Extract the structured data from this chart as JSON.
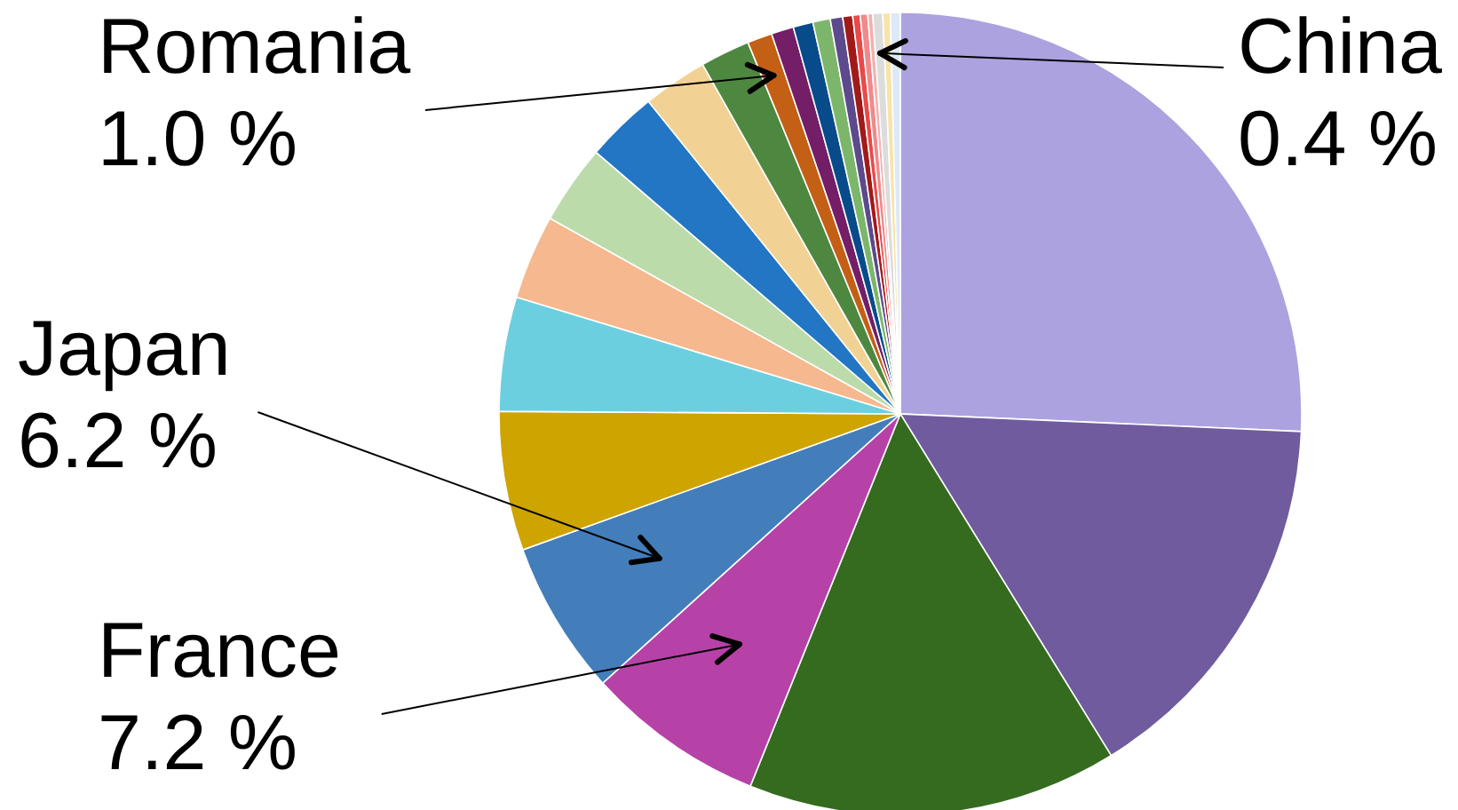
{
  "chart_data": {
    "type": "pie",
    "categories": [
      null,
      null,
      null,
      "France",
      "Japan",
      null,
      null,
      null,
      null,
      null,
      null,
      null,
      "Romania",
      null,
      null,
      null,
      null,
      null,
      null,
      null,
      null,
      "China",
      null,
      null
    ],
    "values": [
      25.7,
      15.5,
      14.9,
      7.2,
      6.2,
      5.6,
      4.6,
      3.4,
      3.2,
      2.9,
      2.6,
      2.0,
      1.0,
      0.9,
      0.8,
      0.7,
      0.5,
      0.4,
      0.3,
      0.3,
      0.2,
      0.4,
      0.3,
      0.4
    ],
    "value_labels": [
      null,
      null,
      null,
      "7.2 %",
      "6.2 %",
      null,
      null,
      null,
      null,
      null,
      null,
      null,
      "1.0 %",
      null,
      null,
      null,
      null,
      null,
      null,
      null,
      null,
      "0.4 %",
      null,
      null
    ],
    "colors": [
      "#ada2e0",
      "#6f5b9e",
      "#356b1f",
      "#b642a8",
      "#437ebb",
      "#cea400",
      "#6ccfe0",
      "#f6b88e",
      "#bcdbaa",
      "#2276c4",
      "#f2d294",
      "#4e8840",
      "#c45f16",
      "#731e66",
      "#074b8a",
      "#7cb66b",
      "#5c4a8c",
      "#a01a1a",
      "#e84a4a",
      "#f08a8a",
      "#f4b0b0",
      "#dcdcdc",
      "#f8e3a8",
      "#dde9f6"
    ]
  }
}
